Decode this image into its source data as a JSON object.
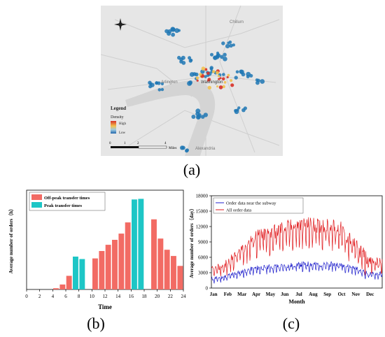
{
  "captions": {
    "a": "(a)",
    "b": "(b)",
    "c": "(c)"
  },
  "map": {
    "legend_title": "Legend",
    "legend_subtitle": "Density",
    "legend_high": "High",
    "legend_low": "Low",
    "scale_ticks": [
      "0",
      "1",
      "2",
      "4"
    ],
    "scale_unit": "Miles",
    "place_labels": [
      "Chillum",
      "Arlington",
      "Washington",
      "Alexandria"
    ],
    "colors": {
      "background": "#e6e6e6",
      "water": "#d4d4d4",
      "road": "#cfcfcf",
      "point_blue": "#1f77b4",
      "high": "#d73027",
      "mid": "#f2c14e"
    }
  },
  "chart_data": [
    {
      "type": "bar",
      "title": "",
      "xlabel": "Time",
      "ylabel": "Average number of orders（h）",
      "x_ticks": [
        "0",
        "2",
        "4",
        "6",
        "8",
        "10",
        "12",
        "14",
        "16",
        "18",
        "20",
        "22",
        "24"
      ],
      "categories": [
        "0",
        "1",
        "2",
        "3",
        "4",
        "5",
        "6",
        "7",
        "8",
        "9",
        "10",
        "11",
        "12",
        "13",
        "14",
        "15",
        "16",
        "17",
        "18",
        "19",
        "20",
        "21",
        "22",
        "23"
      ],
      "series": [
        {
          "name": "Off-peak transfer times",
          "color": "#f26b64",
          "values": [
            0,
            0,
            0,
            0,
            2,
            8,
            22,
            0,
            0,
            0,
            50,
            62,
            72,
            80,
            90,
            108,
            0,
            0,
            0,
            113,
            82,
            64,
            54,
            38
          ]
        },
        {
          "name": "Peak transfer times",
          "color": "#1dc6c6",
          "values": [
            0,
            0,
            0,
            0,
            0,
            0,
            0,
            53,
            49,
            0,
            0,
            0,
            0,
            0,
            0,
            0,
            145,
            146,
            0,
            0,
            0,
            0,
            0,
            0
          ]
        }
      ],
      "xlim": [
        0,
        24
      ],
      "ylim": [
        0,
        160
      ],
      "legend_position": "top-left"
    },
    {
      "type": "line",
      "title": "",
      "xlabel": "Month",
      "ylabel": "Average number of orders（day）",
      "x_ticks": [
        "Jan",
        "Feb",
        "Mar",
        "Apr",
        "May",
        "Jun",
        "Jul",
        "Aug",
        "Sep",
        "Oct",
        "Nov",
        "Dec"
      ],
      "y_ticks": [
        "0",
        "3000",
        "6000",
        "9000",
        "12000",
        "15000",
        "18000"
      ],
      "ylim": [
        0,
        18000
      ],
      "legend_position": "top-left",
      "series": [
        {
          "name": "Order data near the subway",
          "color": "#2222cc",
          "monthly_mean": [
            1500,
            2000,
            2800,
            3500,
            3800,
            3900,
            4200,
            4300,
            4200,
            4300,
            3600,
            2500
          ],
          "monthly_swing": [
            800,
            900,
            1000,
            1100,
            1100,
            1100,
            1200,
            1100,
            1100,
            1000,
            1000,
            900
          ]
        },
        {
          "name": "All order data",
          "color": "#e0191c",
          "monthly_mean": [
            3000,
            4000,
            6500,
            9000,
            9500,
            10500,
            11000,
            11200,
            11000,
            10500,
            7500,
            4500
          ],
          "monthly_swing": [
            1500,
            2000,
            3000,
            3500,
            3500,
            3500,
            3500,
            3500,
            3500,
            3500,
            3000,
            2000
          ]
        }
      ]
    }
  ]
}
